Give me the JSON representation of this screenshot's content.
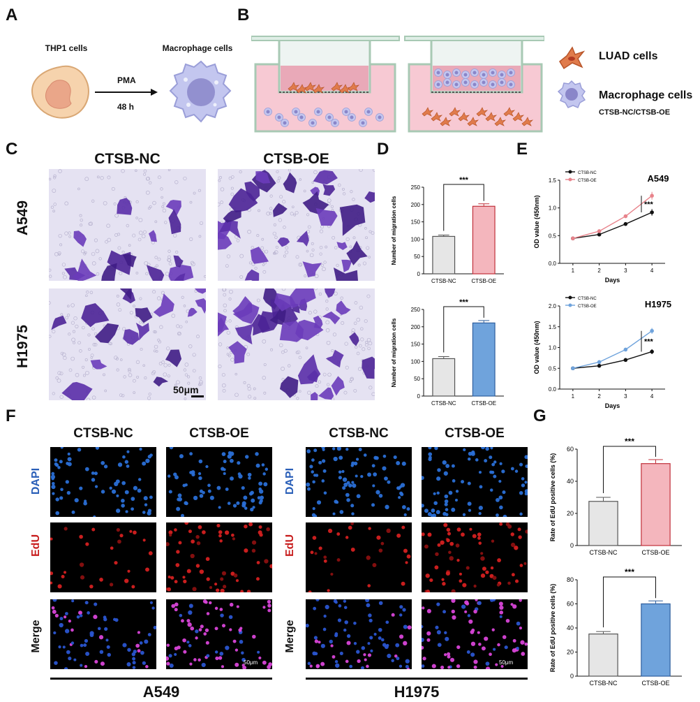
{
  "panels": {
    "A": {
      "letter": "A",
      "left_cell": "THP1 cells",
      "right_cell": "Macrophage cells",
      "arrow_top": "PMA",
      "arrow_bottom": "48 h"
    },
    "B": {
      "letter": "B",
      "legend_luad": "LUAD cells",
      "legend_macro": "Macrophage cells",
      "legend_groups": "CTSB-NC/CTSB-OE"
    },
    "C": {
      "letter": "C",
      "col_nc": "CTSB-NC",
      "col_oe": "CTSB-OE",
      "row_a549": "A549",
      "row_h1975": "H1975",
      "scale": "50μm"
    },
    "D": {
      "letter": "D"
    },
    "E": {
      "letter": "E"
    },
    "F": {
      "letter": "F",
      "col_nc": "CTSB-NC",
      "col_oe": "CTSB-OE",
      "row_dapi": "DAPI",
      "row_edu": "EdU",
      "row_merge": "Merge",
      "group_a549": "A549",
      "group_h1975": "H1975",
      "scale": "50μm"
    },
    "G": {
      "letter": "G"
    }
  },
  "colors": {
    "nc_bar": "#e6e6e6",
    "oe_red": "#f4b6bd",
    "oe_red_edge": "#c0303a",
    "oe_blue": "#6fa3dc",
    "oe_blue_edge": "#2f5f9e",
    "line_nc": "#111111",
    "line_oe_red": "#e8838b",
    "line_oe_blue": "#6fa3dc",
    "dapi": "#2a6fd6",
    "edu": "#d42020"
  },
  "chart_data": [
    {
      "id": "D1",
      "type": "bar",
      "categories": [
        "CTSB-NC",
        "CTSB-OE"
      ],
      "values": [
        108,
        195
      ],
      "errors": [
        4,
        7
      ],
      "ylabel": "Number of  migration cells",
      "ylim": [
        0,
        250
      ],
      "yticks": [
        0,
        50,
        100,
        150,
        200,
        250
      ],
      "sig": "***"
    },
    {
      "id": "D2",
      "type": "bar",
      "categories": [
        "CTSB-NC",
        "CTSB-OE"
      ],
      "values": [
        108,
        211
      ],
      "errors": [
        6,
        7
      ],
      "ylabel": "Number of  migration cells",
      "ylim": [
        0,
        250
      ],
      "yticks": [
        0,
        50,
        100,
        150,
        200,
        250
      ],
      "sig": "***"
    },
    {
      "id": "E1",
      "type": "line",
      "title": "A549",
      "x": [
        1,
        2,
        3,
        4
      ],
      "series": [
        {
          "name": "CTSB-NC",
          "values": [
            0.45,
            0.52,
            0.71,
            0.92
          ],
          "errors": [
            0.02,
            0.02,
            0.02,
            0.06
          ]
        },
        {
          "name": "CTSB-OE",
          "values": [
            0.45,
            0.58,
            0.85,
            1.22
          ],
          "errors": [
            0.02,
            0.02,
            0.03,
            0.07
          ]
        }
      ],
      "xlabel": "Days",
      "ylabel": "OD value (450nm)",
      "ylim": [
        0,
        1.5
      ],
      "yticks": [
        0.0,
        0.5,
        1.0,
        1.5
      ],
      "yticklabels": [
        "0.0",
        "0.5",
        "1.0",
        "1.5"
      ],
      "sig": "***"
    },
    {
      "id": "E2",
      "type": "line",
      "title": "H1975",
      "x": [
        1,
        2,
        3,
        4
      ],
      "series": [
        {
          "name": "CTSB-NC",
          "values": [
            0.5,
            0.56,
            0.7,
            0.9
          ],
          "errors": [
            0.02,
            0.02,
            0.04,
            0.06
          ]
        },
        {
          "name": "CTSB-OE",
          "values": [
            0.5,
            0.65,
            0.95,
            1.4
          ],
          "errors": [
            0.02,
            0.02,
            0.04,
            0.07
          ]
        }
      ],
      "xlabel": "Days",
      "ylabel": "OD value (450nm)",
      "ylim": [
        0,
        2.0
      ],
      "yticks": [
        0.0,
        0.5,
        1.0,
        1.5,
        2.0
      ],
      "yticklabels": [
        "0.0",
        "0.5",
        "1.0",
        "1.5",
        "2.0"
      ],
      "sig": "***"
    },
    {
      "id": "G1",
      "type": "bar",
      "categories": [
        "CTSB-NC",
        "CTSB-OE"
      ],
      "values": [
        27.5,
        51
      ],
      "errors": [
        2.5,
        2.5
      ],
      "ylabel": "Rate of EdU positive cells (%)",
      "ylim": [
        0,
        60
      ],
      "yticks": [
        0,
        20,
        40,
        60
      ],
      "sig": "***"
    },
    {
      "id": "G2",
      "type": "bar",
      "categories": [
        "CTSB-NC",
        "CTSB-OE"
      ],
      "values": [
        35,
        60
      ],
      "errors": [
        2,
        2.5
      ],
      "ylabel": "Rate of EdU positive cells (%)",
      "ylim": [
        0,
        80
      ],
      "yticks": [
        0,
        20,
        40,
        60,
        80
      ],
      "sig": "***"
    }
  ]
}
